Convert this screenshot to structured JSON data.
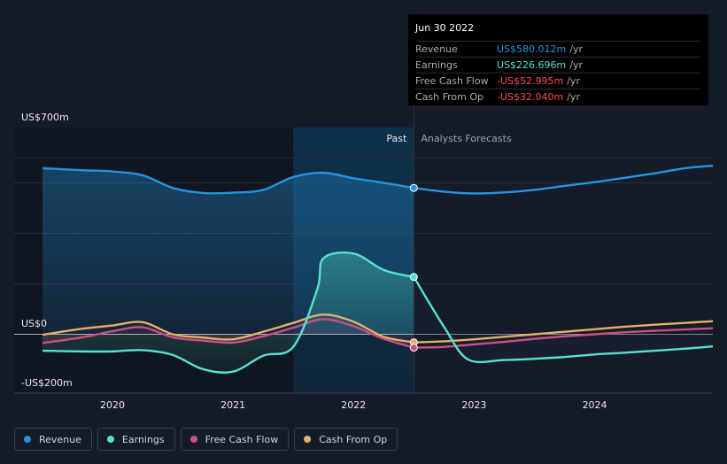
{
  "chart_data": {
    "type": "line",
    "y_axis": {
      "unit": "US$ millions",
      "range": [
        -200,
        700
      ],
      "labels": [
        {
          "value": 700,
          "text": "US$700m"
        },
        {
          "value": 0,
          "text": "US$0"
        },
        {
          "value": -200,
          "text": "-US$200m"
        }
      ],
      "gridlines": [
        700,
        600,
        400,
        200,
        0
      ]
    },
    "x_axis": {
      "range": [
        2019.42,
        2024.98
      ],
      "ticks": [
        {
          "value": 2020,
          "text": "2020"
        },
        {
          "value": 2021,
          "text": "2021"
        },
        {
          "value": 2022,
          "text": "2022"
        },
        {
          "value": 2023,
          "text": "2023"
        },
        {
          "value": 2024,
          "text": "2024"
        }
      ]
    },
    "regions": {
      "past_label": "Past",
      "forecast_label": "Analysts Forecasts",
      "divider_x": 2022.5,
      "highlight_start": 2021.5
    },
    "series": [
      {
        "name": "Revenue",
        "color": "#2394df",
        "x": [
          2019.42,
          2019.75,
          2020.0,
          2020.25,
          2020.5,
          2020.75,
          2021.0,
          2021.25,
          2021.5,
          2021.75,
          2022.0,
          2022.25,
          2022.5
        ],
        "values": [
          658,
          650,
          645,
          630,
          580,
          560,
          561,
          572,
          623,
          640,
          618,
          600,
          580
        ],
        "forecast_x": [
          2022.5,
          2022.75,
          2023.0,
          2023.25,
          2023.5,
          2023.75,
          2024.0,
          2024.25,
          2024.5,
          2024.75,
          2024.98
        ],
        "forecast_values": [
          580,
          565,
          558,
          562,
          572,
          588,
          603,
          620,
          638,
          658,
          668
        ]
      },
      {
        "name": "Earnings",
        "color": "#58e1cd",
        "x": [
          2019.42,
          2019.75,
          2020.0,
          2020.25,
          2020.5,
          2020.75,
          2021.0,
          2021.25,
          2021.5,
          2021.7,
          2021.75,
          2022.0,
          2022.25,
          2022.5
        ],
        "values": [
          -65,
          -68,
          -68,
          -63,
          -82,
          -138,
          -148,
          -85,
          -50,
          180,
          301,
          320,
          255,
          227
        ],
        "forecast_x": [
          2022.5,
          2022.75,
          2022.95,
          2023.25,
          2023.5,
          2023.75,
          2024.0,
          2024.25,
          2024.5,
          2024.75,
          2024.98
        ],
        "forecast_values": [
          227,
          30,
          -100,
          -102,
          -97,
          -90,
          -80,
          -73,
          -65,
          -57,
          -48
        ]
      },
      {
        "name": "Free Cash Flow",
        "color": "#c7508a",
        "x": [
          2019.42,
          2019.75,
          2020.0,
          2020.25,
          2020.5,
          2020.75,
          2021.0,
          2021.25,
          2021.5,
          2021.75,
          2022.0,
          2022.25,
          2022.5
        ],
        "values": [
          -35,
          -12,
          12,
          28,
          -12,
          -25,
          -33,
          -8,
          26,
          60,
          32,
          -18,
          -53
        ],
        "forecast_x": [
          2022.5,
          2022.75,
          2023.0,
          2023.25,
          2023.5,
          2023.75,
          2024.0,
          2024.25,
          2024.5,
          2024.75,
          2024.98
        ],
        "forecast_values": [
          -53,
          -50,
          -40,
          -30,
          -18,
          -8,
          0,
          8,
          14,
          19,
          24
        ]
      },
      {
        "name": "Cash From Op",
        "color": "#e5b065",
        "x": [
          2019.42,
          2019.75,
          2020.0,
          2020.25,
          2020.5,
          2020.75,
          2021.0,
          2021.25,
          2021.5,
          2021.75,
          2022.0,
          2022.25,
          2022.5
        ],
        "values": [
          -2,
          22,
          35,
          48,
          0,
          -13,
          -20,
          10,
          45,
          78,
          50,
          -10,
          -32
        ],
        "forecast_x": [
          2022.5,
          2022.75,
          2023.0,
          2023.25,
          2023.5,
          2023.75,
          2024.0,
          2024.25,
          2024.5,
          2024.75,
          2024.98
        ],
        "forecast_values": [
          -32,
          -28,
          -20,
          -10,
          0,
          10,
          20,
          30,
          38,
          45,
          52
        ]
      }
    ]
  },
  "tooltip": {
    "date": "Jun 30 2022",
    "rows": [
      {
        "label": "Revenue",
        "value": "US$580.012m",
        "unit": "/yr",
        "color": "#2394df"
      },
      {
        "label": "Earnings",
        "value": "US$226.696m",
        "unit": "/yr",
        "color": "#58e1cd"
      },
      {
        "label": "Free Cash Flow",
        "value": "-US$52.995m",
        "unit": "/yr",
        "color": "#ff4b4b"
      },
      {
        "label": "Cash From Op",
        "value": "-US$32.040m",
        "unit": "/yr",
        "color": "#ff4b4b"
      }
    ]
  },
  "legend": [
    {
      "label": "Revenue",
      "color": "#2394df"
    },
    {
      "label": "Earnings",
      "color": "#58e1cd"
    },
    {
      "label": "Free Cash Flow",
      "color": "#c7508a"
    },
    {
      "label": "Cash From Op",
      "color": "#e5b065"
    }
  ],
  "colors": {
    "background": "#151b28",
    "past_shade": "#111722",
    "highlight": "#103a5a",
    "grid": "#262d3c"
  }
}
